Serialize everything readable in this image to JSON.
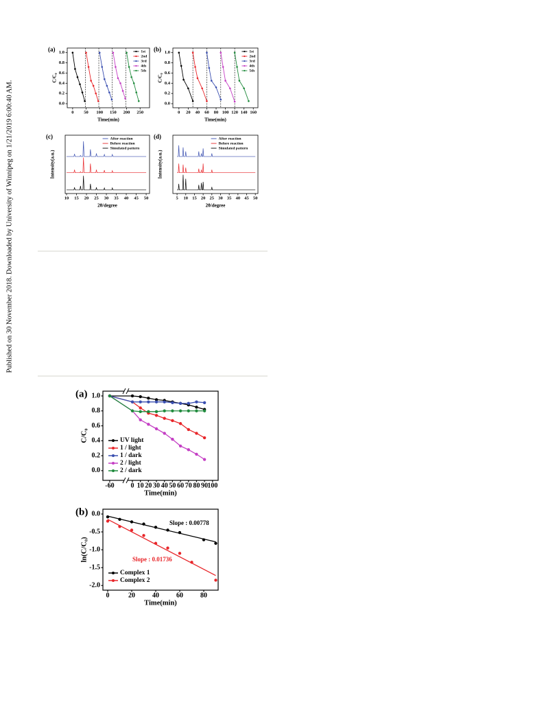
{
  "side_text": "Published on 30 November 2018. Downloaded by University of Winnipeg on 1/21/2019 6:00:40 AM.",
  "chart_data": [
    {
      "type": "line",
      "title": "(a)",
      "xlabel": "Time(min)",
      "ylabel": "C/C₀",
      "markers": true,
      "legend": "upper right",
      "xlim": [
        -20,
        285
      ],
      "ylim": [
        -0.08,
        1.09
      ],
      "xticks": [
        0,
        50,
        100,
        150,
        200,
        250
      ],
      "yticks": [
        {
          "value": 0,
          "label": "0.0"
        },
        0.2,
        0.4,
        0.6,
        0.8,
        {
          "value": 1,
          "label": "1.0"
        }
      ],
      "vlines": [
        47,
        97,
        147,
        197
      ],
      "series": [
        {
          "name": "1st",
          "color": "#000000",
          "x": [
            0,
            9,
            18,
            27,
            36,
            45
          ],
          "values": [
            1.0,
            0.68,
            0.52,
            0.38,
            0.22,
            0.05
          ]
        },
        {
          "name": "2nd",
          "color": "#e8262a",
          "x": [
            50,
            59,
            68,
            77,
            86,
            95
          ],
          "values": [
            1.0,
            0.72,
            0.45,
            0.35,
            0.2,
            0.05
          ]
        },
        {
          "name": "3rd",
          "color": "#3a4fb0",
          "x": [
            100,
            109,
            118,
            127,
            136,
            145
          ],
          "values": [
            1.0,
            0.72,
            0.48,
            0.35,
            0.22,
            0.08
          ]
        },
        {
          "name": "4th",
          "color": "#c43fc4",
          "x": [
            150,
            159,
            168,
            177,
            186,
            195
          ],
          "values": [
            1.0,
            0.72,
            0.5,
            0.4,
            0.25,
            0.1
          ]
        },
        {
          "name": "5th",
          "color": "#1f8a3c",
          "x": [
            200,
            209,
            218,
            227,
            236,
            245
          ],
          "values": [
            1.0,
            0.72,
            0.52,
            0.4,
            0.22,
            0.05
          ]
        }
      ]
    },
    {
      "type": "line",
      "title": "(b)",
      "xlabel": "Time(min)",
      "ylabel": "C/C₀",
      "markers": true,
      "legend": "upper right",
      "xlim": [
        -13,
        170
      ],
      "ylim": [
        -0.08,
        1.09
      ],
      "xticks": [
        0,
        20,
        40,
        60,
        80,
        100,
        120,
        140,
        160
      ],
      "yticks": [
        {
          "value": 0,
          "label": "0.0"
        },
        0.2,
        0.4,
        0.6,
        0.8,
        {
          "value": 1,
          "label": "1.0"
        }
      ],
      "vlines": [
        30,
        60,
        90,
        120
      ],
      "series": [
        {
          "name": "1st",
          "color": "#000000",
          "x": [
            0,
            5,
            10,
            20,
            30
          ],
          "values": [
            1.0,
            0.74,
            0.47,
            0.3,
            0.05
          ]
        },
        {
          "name": "2nd",
          "color": "#e8262a",
          "x": [
            30,
            35,
            40,
            50,
            60
          ],
          "values": [
            1.0,
            0.72,
            0.5,
            0.3,
            0.05
          ]
        },
        {
          "name": "3rd",
          "color": "#3a4fb0",
          "x": [
            60,
            65,
            70,
            80,
            90
          ],
          "values": [
            1.0,
            0.7,
            0.45,
            0.32,
            0.08
          ]
        },
        {
          "name": "4th",
          "color": "#c43fc4",
          "x": [
            90,
            95,
            100,
            110,
            120
          ],
          "values": [
            1.0,
            0.72,
            0.45,
            0.3,
            0.04
          ]
        },
        {
          "name": "5th",
          "color": "#1f8a3c",
          "x": [
            120,
            125,
            130,
            140,
            150
          ],
          "values": [
            1.0,
            0.72,
            0.45,
            0.3,
            0.05
          ]
        }
      ]
    },
    {
      "type": "line",
      "title": "(c)",
      "xlabel": "2θ/degree",
      "ylabel": "Intensity(a.u.)",
      "markers": false,
      "legend": "upper right",
      "xlim": [
        9.3,
        51.7
      ],
      "ylim": [
        -5,
        110
      ],
      "xticks": [
        10,
        15,
        20,
        25,
        30,
        35,
        40,
        45,
        50
      ],
      "x": [
        10,
        13.7,
        14,
        14.3,
        16.7,
        17,
        17.3,
        18.2,
        18.5,
        18.8,
        21.7,
        22,
        22.3,
        24.7,
        25,
        25.3,
        28.7,
        29,
        29.3,
        32.7,
        33,
        33.3,
        50
      ],
      "series": [
        {
          "name": "After reaction",
          "color": "#3a4fb0",
          "values": [
            68,
            68,
            73,
            68,
            68,
            70,
            68,
            68,
            98,
            68,
            68,
            82,
            68,
            68,
            74,
            68,
            68,
            72,
            68,
            68,
            72,
            68,
            68
          ]
        },
        {
          "name": "Before reaction",
          "color": "#e8262a",
          "values": [
            36,
            36,
            42,
            36,
            36,
            38,
            36,
            36,
            66,
            36,
            36,
            54,
            36,
            36,
            42,
            36,
            36,
            41,
            36,
            36,
            40,
            36,
            36
          ]
        },
        {
          "name": "Simulated pattern",
          "color": "#000000",
          "values": [
            2,
            2,
            7,
            2,
            2,
            10,
            2,
            2,
            30,
            2,
            2,
            14,
            2,
            2,
            7,
            2,
            2,
            6,
            2,
            2,
            6,
            2,
            2
          ]
        }
      ]
    },
    {
      "type": "line",
      "title": "(d)",
      "xlabel": "2θ/degree",
      "ylabel": "Intensity(a.u.)",
      "markers": false,
      "legend": "upper right",
      "xlim": [
        2.6,
        51.5
      ],
      "ylim": [
        -5,
        110
      ],
      "xticks": [
        5,
        10,
        15,
        20,
        25,
        30,
        35,
        40,
        45,
        50
      ],
      "x": [
        5,
        5.7,
        6,
        6.3,
        8.2,
        8.5,
        8.8,
        9.7,
        10,
        10.3,
        17.2,
        17.5,
        17.8,
        18.7,
        19,
        19.3,
        19.7,
        20,
        20.3,
        24.7,
        25,
        25.3,
        50
      ],
      "series": [
        {
          "name": "After reaction",
          "color": "#3a4fb0",
          "values": [
            68,
            68,
            90,
            68,
            68,
            86,
            68,
            68,
            78,
            68,
            68,
            78,
            68,
            68,
            74,
            68,
            68,
            84,
            68,
            68,
            74,
            68,
            68
          ]
        },
        {
          "name": "Before reaction",
          "color": "#e8262a",
          "values": [
            36,
            36,
            54,
            36,
            36,
            52,
            36,
            36,
            46,
            36,
            36,
            44,
            36,
            36,
            42,
            36,
            36,
            54,
            36,
            36,
            42,
            36,
            36
          ]
        },
        {
          "name": "Simulated pattern",
          "color": "#000000",
          "values": [
            2,
            2,
            14,
            2,
            2,
            32,
            2,
            2,
            24,
            2,
            2,
            12,
            2,
            2,
            16,
            2,
            2,
            18,
            2,
            2,
            8,
            2,
            2
          ]
        }
      ]
    },
    {
      "type": "line",
      "title": "(a)",
      "xlabel": "Time(min)",
      "ylabel": "C/C₀",
      "markers": true,
      "legend": "lower left",
      "axis_break": true,
      "xlim": [
        -78,
        107
      ],
      "ylim": [
        -0.13,
        1.064
      ],
      "xticks": [
        -60,
        0,
        10,
        20,
        30,
        40,
        50,
        60,
        70,
        80,
        90,
        100
      ],
      "yticks": [
        {
          "value": 0,
          "label": "0.0"
        },
        0.2,
        0.4,
        0.6,
        0.8,
        {
          "value": 1,
          "label": "1.0"
        }
      ],
      "x": [
        -60,
        0,
        10,
        20,
        30,
        40,
        50,
        60,
        70,
        80,
        90
      ],
      "series": [
        {
          "name": "UV light",
          "color": "#000000",
          "values": [
            1.0,
            1.0,
            0.99,
            0.97,
            0.95,
            0.94,
            0.92,
            0.9,
            0.88,
            0.85,
            0.82
          ]
        },
        {
          "name": "1 / light",
          "color": "#e8262a",
          "values": [
            1.0,
            0.92,
            0.84,
            0.77,
            0.74,
            0.7,
            0.67,
            0.63,
            0.55,
            0.5,
            0.44
          ]
        },
        {
          "name": "1 / dark",
          "color": "#3a4fb0",
          "values": [
            1.0,
            0.92,
            0.92,
            0.92,
            0.92,
            0.92,
            0.91,
            0.9,
            0.9,
            0.92,
            0.91
          ]
        },
        {
          "name": "2 / light",
          "color": "#c43fc4",
          "values": [
            1.0,
            0.8,
            0.68,
            0.62,
            0.56,
            0.5,
            0.42,
            0.33,
            0.28,
            0.22,
            0.15
          ]
        },
        {
          "name": "2 / dark",
          "color": "#1f8a3c",
          "values": [
            1.0,
            0.8,
            0.79,
            0.79,
            0.79,
            0.8,
            0.8,
            0.8,
            0.8,
            0.8,
            0.8
          ]
        }
      ]
    },
    {
      "type": "scatter",
      "title": "(b)",
      "xlabel": "Time(min)",
      "ylabel": "ln(C/C₀)",
      "legend": "lower left",
      "xlim": [
        -4,
        92
      ],
      "ylim": [
        -2.13,
        0.135
      ],
      "xticks": [
        0,
        20,
        40,
        60,
        80
      ],
      "yticks": [
        {
          "value": 0,
          "label": "0.0"
        },
        -0.5,
        {
          "value": -1,
          "label": "-1.0"
        },
        -1.5,
        {
          "value": -2,
          "label": "-2.0"
        }
      ],
      "series": [
        {
          "name": "Complex 1",
          "color": "#000000",
          "x": [
            0,
            10,
            20,
            30,
            40,
            50,
            60,
            80,
            90
          ],
          "values": [
            -0.08,
            -0.15,
            -0.22,
            -0.28,
            -0.37,
            -0.45,
            -0.52,
            -0.72,
            -0.82
          ],
          "fit_x": [
            0,
            90
          ],
          "fit_values": [
            -0.06,
            -0.78
          ]
        },
        {
          "name": "Complex 2",
          "color": "#e8262a",
          "x": [
            0,
            10,
            20,
            30,
            40,
            50,
            60,
            70,
            90
          ],
          "values": [
            -0.2,
            -0.35,
            -0.45,
            -0.6,
            -0.82,
            -0.95,
            -1.1,
            -1.35,
            -1.85
          ],
          "fit_x": [
            0,
            90
          ],
          "fit_values": [
            -0.15,
            -1.72
          ]
        }
      ],
      "annotations": [
        {
          "text": "Slope :  0.00778",
          "color": "#000000"
        },
        {
          "text": "Slope :  0.01736",
          "color": "#e8262a"
        }
      ]
    }
  ]
}
